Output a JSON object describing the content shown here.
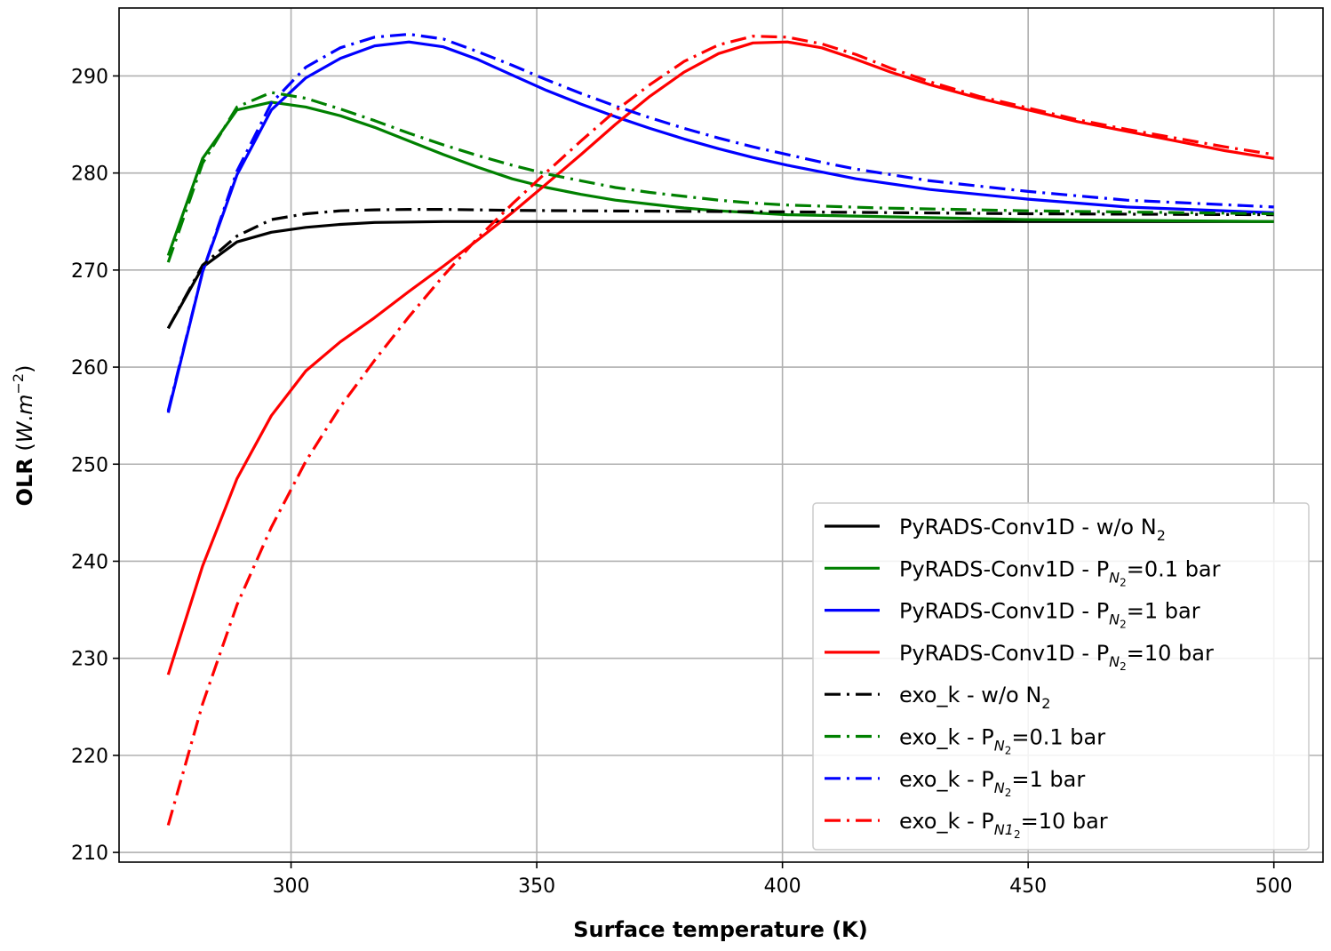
{
  "chart_data": {
    "type": "line",
    "xlabel": "Surface temperature (K)",
    "ylabel": "OLR",
    "ylabel_unit_parts": {
      "open": " (",
      "w": "W",
      "dot": ".",
      "m": "m",
      "exp": "−2",
      "close": ")"
    },
    "xlim": [
      265,
      510
    ],
    "ylim": [
      209,
      297
    ],
    "xticks": [
      300,
      350,
      400,
      450,
      500
    ],
    "yticks": [
      210,
      220,
      230,
      240,
      250,
      260,
      270,
      280,
      290
    ],
    "grid": true,
    "legend_position": "lower-right",
    "series": [
      {
        "name_main": "PyRADS-Conv1D - w/o N",
        "name_sub": "",
        "name_sub2": "2",
        "name_tail": "",
        "color": "#000000",
        "dash": "solid",
        "x": [
          275,
          282,
          289,
          296,
          303,
          310,
          317,
          324,
          331,
          338,
          345,
          360,
          400,
          450,
          500
        ],
        "y": [
          264,
          270.3,
          272.9,
          273.9,
          274.4,
          274.7,
          274.9,
          274.95,
          275,
          275,
          275,
          275,
          275,
          275,
          275
        ]
      },
      {
        "name_main": "PyRADS-Conv1D - P",
        "name_sub": "N",
        "name_sub2": "2",
        "name_tail": "=0.1 bar",
        "color": "#008000",
        "dash": "solid",
        "x": [
          275,
          282,
          289,
          296,
          303,
          310,
          317,
          324,
          331,
          338,
          345,
          352,
          359,
          366,
          373,
          380,
          387,
          394,
          401,
          450,
          500
        ],
        "y": [
          271.5,
          281.5,
          286.5,
          287.3,
          286.8,
          285.9,
          284.7,
          283.3,
          281.9,
          280.6,
          279.4,
          278.5,
          277.8,
          277.2,
          276.8,
          276.4,
          276.1,
          275.9,
          275.7,
          275.2,
          275
        ]
      },
      {
        "name_main": "PyRADS-Conv1D - P",
        "name_sub": "N",
        "name_sub2": "2",
        "name_tail": "=1 bar",
        "color": "#0000ff",
        "dash": "solid",
        "x": [
          275,
          282,
          289,
          296,
          303,
          310,
          317,
          324,
          331,
          338,
          345,
          352,
          359,
          366,
          373,
          380,
          387,
          394,
          401,
          408,
          415,
          430,
          450,
          470,
          500
        ],
        "y": [
          255.3,
          269.8,
          279.8,
          286.5,
          289.8,
          291.8,
          293.1,
          293.5,
          293,
          291.7,
          290.1,
          288.5,
          287.1,
          285.8,
          284.6,
          283.5,
          282.5,
          281.6,
          280.8,
          280.1,
          279.4,
          278.3,
          277.3,
          276.5,
          275.9
        ]
      },
      {
        "name_main": "PyRADS-Conv1D - P",
        "name_sub": "N",
        "name_sub2": "2",
        "name_tail": "=10 bar",
        "color": "#ff0000",
        "dash": "solid",
        "x": [
          275,
          282,
          289,
          296,
          303,
          310,
          317,
          324,
          331,
          338,
          345,
          352,
          359,
          366,
          373,
          380,
          387,
          394,
          401,
          408,
          415,
          422,
          430,
          440,
          450,
          460,
          470,
          480,
          490,
          500
        ],
        "y": [
          228.3,
          239.5,
          248.5,
          255,
          259.6,
          262.6,
          265.1,
          267.8,
          270.4,
          273.1,
          275.9,
          278.9,
          281.9,
          285,
          287.9,
          290.4,
          292.3,
          293.4,
          293.5,
          292.9,
          291.7,
          290.4,
          289.1,
          287.7,
          286.5,
          285.3,
          284.3,
          283.3,
          282.3,
          281.5
        ]
      },
      {
        "name_main": "exo_k - w/o N",
        "name_sub": "",
        "name_sub2": "2",
        "name_tail": "",
        "color": "#000000",
        "dash": "dashdot",
        "x": [
          275,
          282,
          289,
          296,
          303,
          310,
          317,
          324,
          331,
          338,
          345,
          360,
          400,
          450,
          500
        ],
        "y": [
          264,
          270.5,
          273.5,
          275.2,
          275.8,
          276.1,
          276.2,
          276.25,
          276.25,
          276.2,
          276.15,
          276.1,
          276,
          275.8,
          275.7
        ]
      },
      {
        "name_main": "exo_k - P",
        "name_sub": "N",
        "name_sub2": "2",
        "name_tail": "=0.1 bar",
        "color": "#008000",
        "dash": "dashdot",
        "x": [
          275,
          282,
          289,
          296,
          303,
          310,
          317,
          324,
          331,
          338,
          345,
          352,
          359,
          366,
          373,
          380,
          387,
          394,
          401,
          420,
          450,
          500
        ],
        "y": [
          270.8,
          281,
          286.8,
          288.3,
          287.7,
          286.6,
          285.4,
          284.1,
          282.9,
          281.8,
          280.8,
          279.9,
          279.2,
          278.5,
          278,
          277.6,
          277.2,
          276.9,
          276.7,
          276.4,
          276.1,
          275.8
        ]
      },
      {
        "name_main": "exo_k - P",
        "name_sub": "N",
        "name_sub2": "2",
        "name_tail": "=1 bar",
        "color": "#0000ff",
        "dash": "dashdot",
        "x": [
          275,
          282,
          289,
          296,
          303,
          310,
          317,
          324,
          331,
          338,
          345,
          352,
          359,
          366,
          373,
          380,
          387,
          394,
          401,
          408,
          415,
          430,
          450,
          470,
          500
        ],
        "y": [
          255.5,
          269.8,
          280.2,
          287.2,
          290.9,
          292.9,
          294,
          294.3,
          293.8,
          292.5,
          291.1,
          289.6,
          288.2,
          286.9,
          285.7,
          284.6,
          283.6,
          282.7,
          281.9,
          281.1,
          280.4,
          279.2,
          278.1,
          277.2,
          276.5
        ]
      },
      {
        "name_main": "exo_k - P",
        "name_sub": "N1",
        "name_sub2": "2",
        "name_tail": "=10 bar",
        "color": "#ff0000",
        "dash": "dashdot",
        "x": [
          275,
          282,
          289,
          296,
          303,
          310,
          317,
          324,
          331,
          338,
          345,
          352,
          359,
          366,
          373,
          380,
          387,
          394,
          401,
          408,
          415,
          422,
          430,
          440,
          450,
          460,
          470,
          480,
          490,
          500
        ],
        "y": [
          212.8,
          225.3,
          235.5,
          243.5,
          250.3,
          255.9,
          260.7,
          265.2,
          269.4,
          273.3,
          276.8,
          280.1,
          283.3,
          286.4,
          289.1,
          291.5,
          293.2,
          294.1,
          294,
          293.3,
          292.2,
          290.8,
          289.4,
          287.9,
          286.7,
          285.5,
          284.5,
          283.6,
          282.7,
          281.9
        ]
      }
    ]
  }
}
